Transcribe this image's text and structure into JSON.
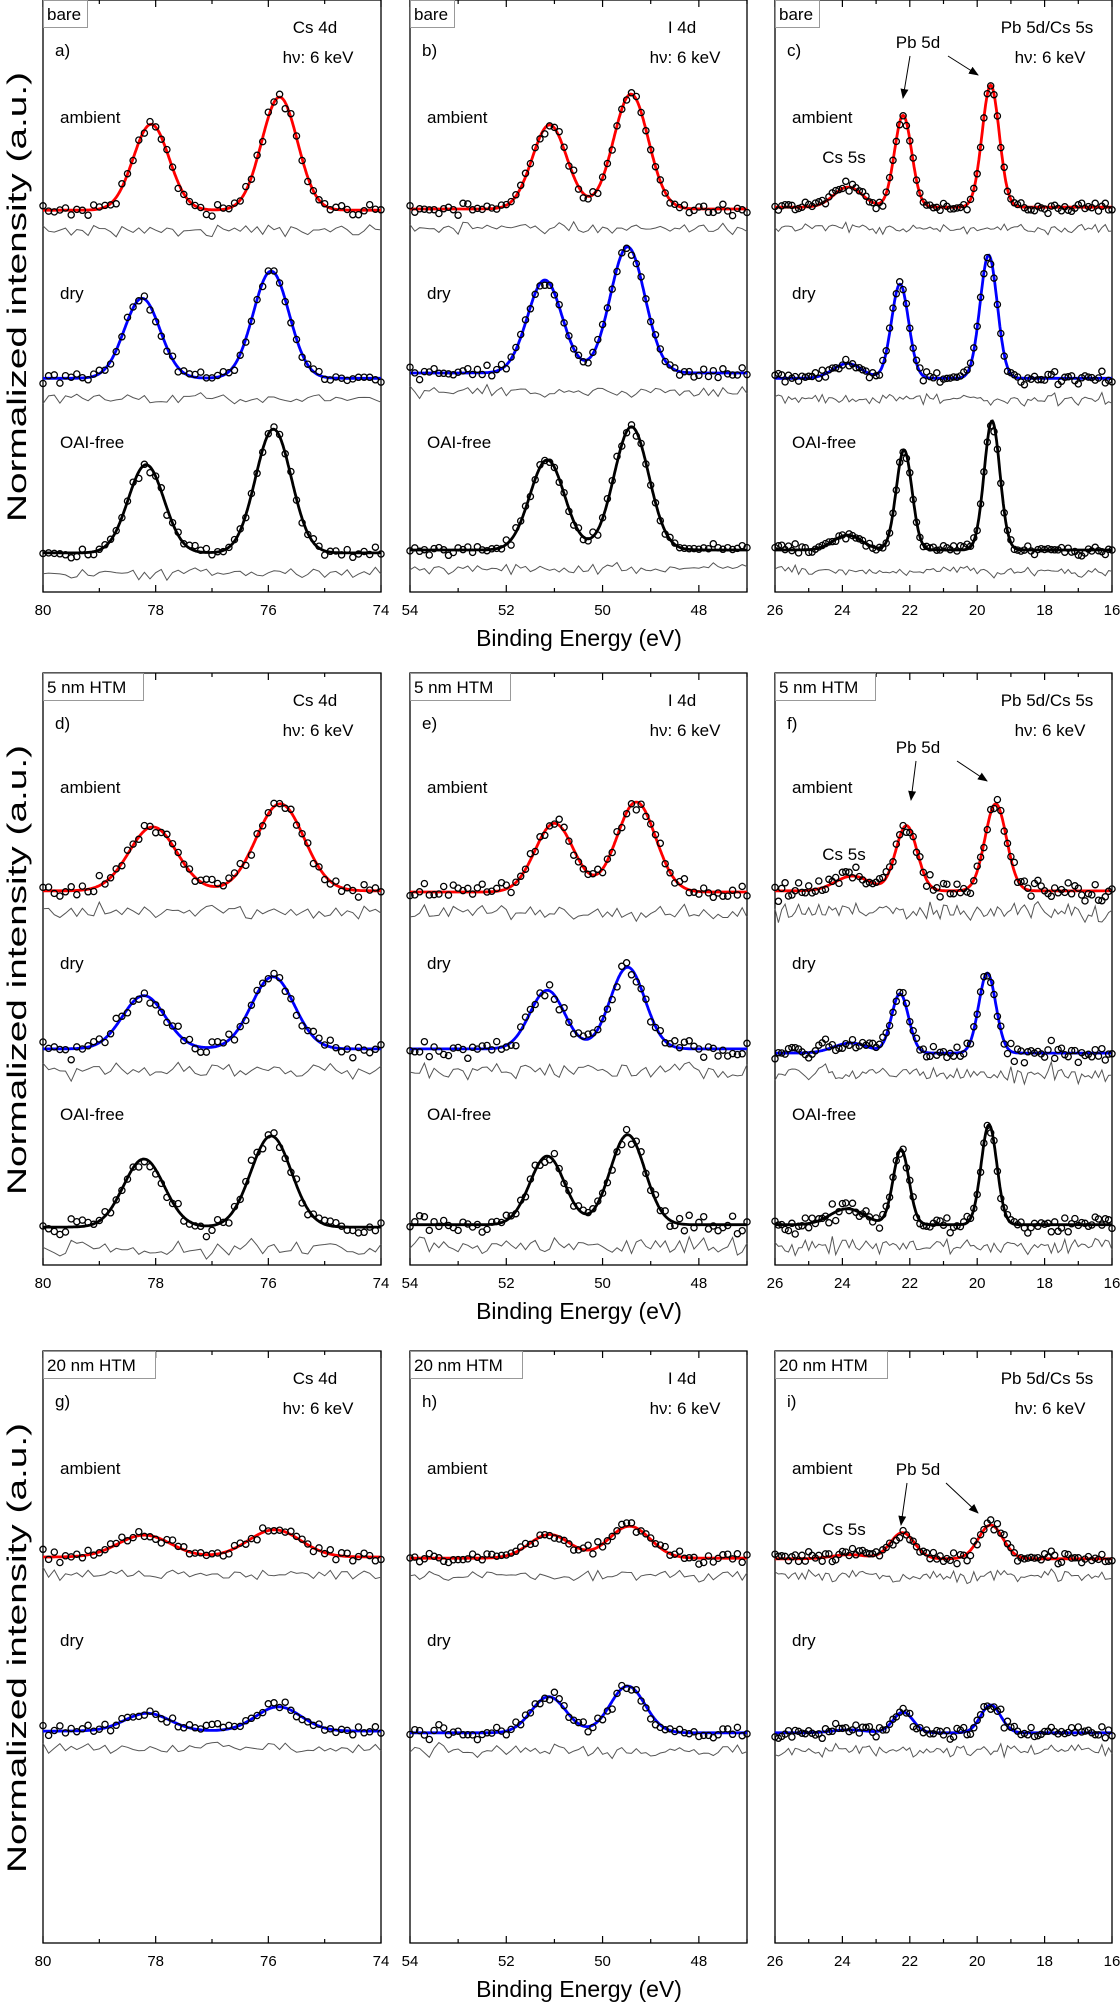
{
  "figure": {
    "xlabel": "Binding Energy (eV)",
    "ylabel": "Normalized intensity (a.u.)"
  },
  "chart_data": [
    {
      "type": "line",
      "panel": "a)",
      "sample": "bare",
      "region": "Cs 4d",
      "photon_energy": "hν: 6 keV",
      "xlim": [
        80,
        74
      ],
      "xticks": [
        "80",
        "78",
        "76",
        "74"
      ],
      "ylim": [
        0,
        100
      ],
      "step": 0.1,
      "residual_offset": -3.4,
      "series": [
        {
          "name": "ambient",
          "color": "#ff0000",
          "baseline": 64.5,
          "peaks": [
            {
              "center": 78.08,
              "amp": 14.5,
              "fwhm": 0.75
            },
            {
              "center": 75.8,
              "amp": 19.1,
              "fwhm": 0.75
            }
          ]
        },
        {
          "name": "dry",
          "color": "#0000ff",
          "baseline": 36.1,
          "peaks": [
            {
              "center": 78.24,
              "amp": 13.5,
              "fwhm": 0.75
            },
            {
              "center": 75.95,
              "amp": 18.1,
              "fwhm": 0.75
            }
          ]
        },
        {
          "name": "OAI-free",
          "color": "#000000",
          "baseline": 6.6,
          "peaks": [
            {
              "center": 78.17,
              "amp": 14.9,
              "fwhm": 0.75
            },
            {
              "center": 75.91,
              "amp": 20.9,
              "fwhm": 0.75
            }
          ]
        }
      ]
    },
    {
      "type": "line",
      "panel": "b)",
      "sample": "bare",
      "region": "I 4d",
      "photon_energy": "hν: 6 keV",
      "xlim": [
        54,
        47
      ],
      "xticks": [
        "54",
        "52",
        "50",
        "48"
      ],
      "ylim": [
        0,
        100
      ],
      "step": 0.1,
      "residual_offset": -3.2,
      "series": [
        {
          "name": "ambient",
          "color": "#ff0000",
          "baseline": 64.7,
          "peaks": [
            {
              "center": 51.1,
              "amp": 14.2,
              "fwhm": 0.85
            },
            {
              "center": 49.41,
              "amp": 19.4,
              "fwhm": 0.85
            }
          ]
        },
        {
          "name": "dry",
          "color": "#0000ff",
          "baseline": 37.0,
          "peaks": [
            {
              "center": 51.2,
              "amp": 15.7,
              "fwhm": 0.85
            },
            {
              "center": 49.48,
              "amp": 21.3,
              "fwhm": 0.85
            }
          ]
        },
        {
          "name": "OAI-free",
          "color": "#000000",
          "baseline": 7.1,
          "peaks": [
            {
              "center": 51.15,
              "amp": 15.2,
              "fwhm": 0.85
            },
            {
              "center": 49.4,
              "amp": 20.8,
              "fwhm": 0.85
            }
          ]
        }
      ]
    },
    {
      "type": "line",
      "panel": "c)",
      "sample": "bare",
      "region": "Pb 5d/Cs 5s",
      "photon_energy": "hν: 6 keV",
      "xlim": [
        26,
        16
      ],
      "xticks": [
        "26",
        "24",
        "22",
        "20",
        "18",
        "16"
      ],
      "ylim": [
        0,
        100
      ],
      "step": 0.1,
      "residual_offset": -3.6,
      "annotations": {
        "pb": "Pb 5d",
        "cs": "Cs 5s"
      },
      "series": [
        {
          "name": "ambient",
          "color": "#ff0000",
          "baseline": 65.0,
          "peaks": [
            {
              "center": 23.83,
              "amp": 3.4,
              "fwhm": 1.0
            },
            {
              "center": 22.2,
              "amp": 15.5,
              "fwhm": 0.6
            },
            {
              "center": 19.6,
              "amp": 20.6,
              "fwhm": 0.6
            }
          ]
        },
        {
          "name": "dry",
          "color": "#0000ff",
          "baseline": 36.1,
          "peaks": [
            {
              "center": 23.85,
              "amp": 2.5,
              "fwhm": 1.0
            },
            {
              "center": 22.29,
              "amp": 15.9,
              "fwhm": 0.6
            },
            {
              "center": 19.66,
              "amp": 20.8,
              "fwhm": 0.6
            }
          ]
        },
        {
          "name": "OAI-free",
          "color": "#000000",
          "baseline": 7.1,
          "peaks": [
            {
              "center": 23.85,
              "amp": 2.5,
              "fwhm": 1.0
            },
            {
              "center": 22.17,
              "amp": 16.9,
              "fwhm": 0.55
            },
            {
              "center": 19.56,
              "amp": 21.8,
              "fwhm": 0.55
            }
          ]
        }
      ]
    },
    {
      "type": "line",
      "panel": "d)",
      "sample": "5 nm HTM",
      "region": "Cs 4d",
      "photon_energy": "hν: 6 keV",
      "xlim": [
        80,
        74
      ],
      "xticks": [
        "80",
        "78",
        "76",
        "74"
      ],
      "ylim": [
        0,
        100
      ],
      "step": 0.1,
      "residual_offset": -3.6,
      "series": [
        {
          "name": "ambient",
          "color": "#ff0000",
          "baseline": 63.2,
          "peaks": [
            {
              "center": 78.05,
              "amp": 10.8,
              "fwhm": 1.0
            },
            {
              "center": 75.79,
              "amp": 14.7,
              "fwhm": 1.0
            }
          ]
        },
        {
          "name": "dry",
          "color": "#0000ff",
          "baseline": 36.5,
          "peaks": [
            {
              "center": 78.21,
              "amp": 9.0,
              "fwhm": 0.9
            },
            {
              "center": 75.92,
              "amp": 12.2,
              "fwhm": 0.9
            }
          ]
        },
        {
          "name": "OAI-free",
          "color": "#000000",
          "baseline": 6.4,
          "peaks": [
            {
              "center": 78.21,
              "amp": 11.5,
              "fwhm": 0.85
            },
            {
              "center": 75.95,
              "amp": 15.4,
              "fwhm": 0.85
            }
          ]
        }
      ]
    },
    {
      "type": "line",
      "panel": "e)",
      "sample": "5 nm HTM",
      "region": "I 4d",
      "photon_energy": "hν: 6 keV",
      "xlim": [
        54,
        47
      ],
      "xticks": [
        "54",
        "52",
        "50",
        "48"
      ],
      "ylim": [
        0,
        100
      ],
      "step": 0.1,
      "residual_offset": -3.6,
      "series": [
        {
          "name": "ambient",
          "color": "#ff0000",
          "baseline": 63.0,
          "peaks": [
            {
              "center": 51.0,
              "amp": 11.6,
              "fwhm": 0.95
            },
            {
              "center": 49.3,
              "amp": 15.2,
              "fwhm": 0.95
            }
          ]
        },
        {
          "name": "dry",
          "color": "#0000ff",
          "baseline": 36.5,
          "peaks": [
            {
              "center": 51.15,
              "amp": 9.9,
              "fwhm": 0.85
            },
            {
              "center": 49.48,
              "amp": 13.8,
              "fwhm": 0.85
            }
          ]
        },
        {
          "name": "OAI-free",
          "color": "#000000",
          "baseline": 6.8,
          "peaks": [
            {
              "center": 51.15,
              "amp": 11.6,
              "fwhm": 0.85
            },
            {
              "center": 49.48,
              "amp": 15.2,
              "fwhm": 0.85
            }
          ]
        }
      ]
    },
    {
      "type": "line",
      "panel": "f)",
      "sample": "5 nm HTM",
      "region": "Pb 5d/Cs 5s",
      "photon_energy": "hν: 6 keV",
      "xlim": [
        26,
        16
      ],
      "xticks": [
        "26",
        "24",
        "22",
        "20",
        "18",
        "16"
      ],
      "ylim": [
        0,
        100
      ],
      "step": 0.1,
      "residual_offset": -3.6,
      "annotations": {
        "pb": "Pb 5d",
        "cs": "Cs 5s"
      },
      "series": [
        {
          "name": "ambient",
          "color": "#ff0000",
          "baseline": 63.2,
          "peaks": [
            {
              "center": 23.7,
              "amp": 2.5,
              "fwhm": 1.2
            },
            {
              "center": 22.1,
              "amp": 11.0,
              "fwhm": 0.75
            },
            {
              "center": 19.45,
              "amp": 14.7,
              "fwhm": 0.75
            }
          ]
        },
        {
          "name": "dry",
          "color": "#0000ff",
          "baseline": 35.8,
          "peaks": [
            {
              "center": 23.75,
              "amp": 1.7,
              "fwhm": 1.2
            },
            {
              "center": 22.29,
              "amp": 10.0,
              "fwhm": 0.6
            },
            {
              "center": 19.7,
              "amp": 13.5,
              "fwhm": 0.6
            }
          ]
        },
        {
          "name": "OAI-free",
          "color": "#000000",
          "baseline": 6.8,
          "peaks": [
            {
              "center": 23.86,
              "amp": 2.7,
              "fwhm": 1.2
            },
            {
              "center": 22.26,
              "amp": 12.7,
              "fwhm": 0.55
            },
            {
              "center": 19.65,
              "amp": 16.9,
              "fwhm": 0.55
            }
          ]
        }
      ]
    },
    {
      "type": "line",
      "panel": "g)",
      "sample": "20 nm HTM",
      "region": "Cs 4d",
      "photon_energy": "hν: 6 keV",
      "xlim": [
        80,
        74
      ],
      "xticks": [
        "80",
        "78",
        "76",
        "74"
      ],
      "ylim": [
        0,
        100
      ],
      "step": 0.1,
      "residual_offset": -3.0,
      "series": [
        {
          "name": "ambient",
          "color": "#ff0000",
          "baseline": 65.2,
          "peaks": [
            {
              "center": 78.2,
              "amp": 3.7,
              "fwhm": 1.1
            },
            {
              "center": 75.89,
              "amp": 4.6,
              "fwhm": 1.1
            }
          ]
        },
        {
          "name": "dry",
          "color": "#0000ff",
          "baseline": 35.8,
          "peaks": [
            {
              "center": 78.15,
              "amp": 3.0,
              "fwhm": 0.95
            },
            {
              "center": 75.82,
              "amp": 4.1,
              "fwhm": 0.95
            }
          ]
        }
      ]
    },
    {
      "type": "line",
      "panel": "h)",
      "sample": "20 nm HTM",
      "region": "I 4d",
      "photon_energy": "hν: 6 keV",
      "xlim": [
        54,
        47
      ],
      "xticks": [
        "54",
        "52",
        "50",
        "48"
      ],
      "ylim": [
        0,
        100
      ],
      "step": 0.1,
      "residual_offset": -3.0,
      "series": [
        {
          "name": "ambient",
          "color": "#ff0000",
          "baseline": 65.0,
          "peaks": [
            {
              "center": 51.1,
              "amp": 4.0,
              "fwhm": 1.0
            },
            {
              "center": 49.44,
              "amp": 5.4,
              "fwhm": 1.0
            }
          ]
        },
        {
          "name": "dry",
          "color": "#0000ff",
          "baseline": 35.5,
          "peaks": [
            {
              "center": 51.12,
              "amp": 6.1,
              "fwhm": 0.85
            },
            {
              "center": 49.48,
              "amp": 7.9,
              "fwhm": 0.85
            }
          ]
        }
      ]
    },
    {
      "type": "line",
      "panel": "i)",
      "sample": "20 nm HTM",
      "region": "Pb 5d/Cs 5s",
      "photon_energy": "hν: 6 keV",
      "xlim": [
        26,
        16
      ],
      "xticks": [
        "26",
        "24",
        "22",
        "20",
        "18",
        "16"
      ],
      "ylim": [
        0,
        100
      ],
      "step": 0.1,
      "residual_offset": -3.0,
      "annotations": {
        "pb": "Pb 5d",
        "cs": "Cs 5s"
      },
      "series": [
        {
          "name": "ambient",
          "color": "#ff0000",
          "baseline": 64.9,
          "peaks": [
            {
              "center": 23.8,
              "amp": 0.7,
              "fwhm": 1.2
            },
            {
              "center": 22.22,
              "amp": 4.4,
              "fwhm": 0.85
            },
            {
              "center": 19.6,
              "amp": 5.7,
              "fwhm": 0.85
            }
          ]
        },
        {
          "name": "dry",
          "color": "#0000ff",
          "baseline": 35.5,
          "peaks": [
            {
              "center": 23.8,
              "amp": 0.5,
              "fwhm": 1.2
            },
            {
              "center": 22.2,
              "amp": 3.5,
              "fwhm": 0.7
            },
            {
              "center": 19.6,
              "amp": 4.7,
              "fwhm": 0.7
            }
          ]
        }
      ]
    }
  ]
}
